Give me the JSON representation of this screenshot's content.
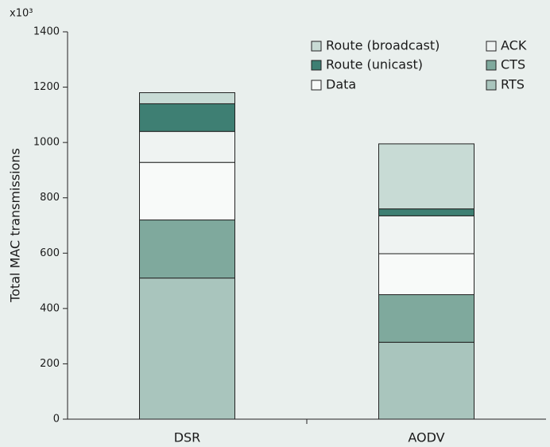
{
  "chart_data": {
    "type": "stacked_bar",
    "y_unit": "x10³",
    "y_label": "Total MAC transmissions",
    "categories": [
      "DSR",
      "AODV"
    ],
    "series": [
      {
        "name": "RTS",
        "color": "#a9c5bd",
        "values": [
          510,
          278
        ]
      },
      {
        "name": "CTS",
        "color": "#7fa99d",
        "values": [
          210,
          172
        ]
      },
      {
        "name": "Data",
        "color": "#f8faf9",
        "values": [
          208,
          148
        ]
      },
      {
        "name": "ACK",
        "color": "#eff3f2",
        "values": [
          112,
          137
        ]
      },
      {
        "name": "Route (unicast)",
        "color": "#3e7f73",
        "values": [
          100,
          25
        ]
      },
      {
        "name": "Route (broadcast)",
        "color": "#c8dbd5",
        "values": [
          40,
          235
        ]
      }
    ],
    "ylim": [
      0,
      1400
    ],
    "yticks": [
      0,
      200,
      400,
      600,
      800,
      1000,
      1200,
      1400
    ]
  }
}
